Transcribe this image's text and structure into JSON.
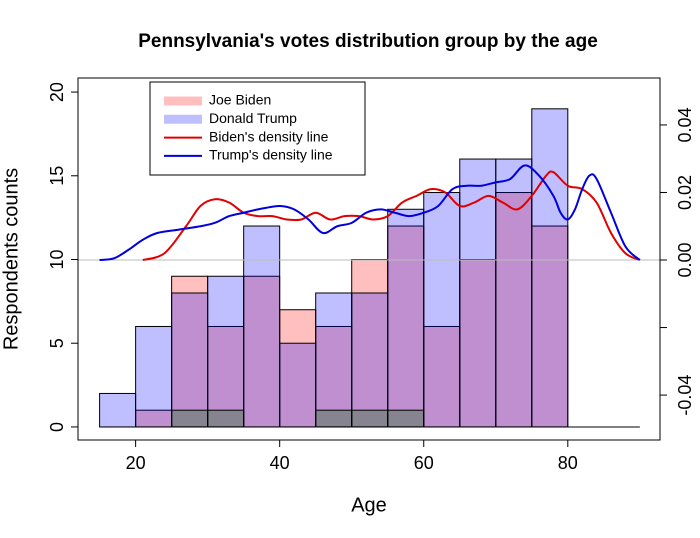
{
  "chart_data": {
    "type": "histogram",
    "title": "Pennsylvania's votes distribution group by the age",
    "xlabel": "Age",
    "ylabel": "Respondents counts",
    "bins": [
      15,
      20,
      25,
      30,
      35,
      40,
      45,
      50,
      55,
      60,
      65,
      70,
      75,
      80
    ],
    "series": [
      {
        "name": "Joe Biden",
        "color": "rgba(255,0,0,0.25)",
        "values": [
          0,
          1,
          9,
          6,
          9,
          7,
          6,
          10,
          12,
          6,
          10,
          14,
          12
        ]
      },
      {
        "name": "Donald Trump",
        "color": "rgba(0,0,255,0.25)",
        "values": [
          2,
          6,
          8,
          9,
          12,
          5,
          8,
          8,
          13,
          14,
          16,
          16,
          19
        ]
      },
      {
        "color": "rgba(0,110,0,0.3)",
        "values": [
          0,
          0,
          1,
          1,
          0,
          0,
          1,
          1,
          1,
          0,
          0,
          0,
          0
        ]
      }
    ],
    "lines": [
      {
        "name": "Biden's density line",
        "color": "#e00000",
        "axis": "y2",
        "x": [
          21,
          24,
          27,
          29,
          31,
          33,
          35,
          37,
          39,
          41,
          43,
          45,
          47,
          49,
          51,
          53,
          55,
          57,
          59,
          61,
          63,
          65,
          67,
          69,
          71,
          73,
          75,
          77,
          78,
          80,
          82,
          84,
          86,
          88,
          90
        ],
        "values": [
          0,
          0.002,
          0.01,
          0.016,
          0.018,
          0.017,
          0.014,
          0.013,
          0.013,
          0.012,
          0.012,
          0.014,
          0.012,
          0.013,
          0.013,
          0.012,
          0.013,
          0.017,
          0.019,
          0.021,
          0.02,
          0.016,
          0.017,
          0.019,
          0.017,
          0.015,
          0.019,
          0.025,
          0.026,
          0.022,
          0.021,
          0.017,
          0.008,
          0.002,
          0
        ]
      },
      {
        "name": "Trump's density line",
        "color": "#0000dd",
        "axis": "y2",
        "x": [
          15,
          17,
          19,
          21,
          23,
          26,
          29,
          31,
          33,
          35,
          37,
          40,
          42,
          44,
          46,
          48,
          50,
          52,
          54,
          56,
          58,
          60,
          62,
          64,
          66,
          68,
          70,
          72,
          74,
          76,
          78,
          79,
          80,
          81,
          82,
          83,
          84,
          86,
          88,
          90
        ],
        "values": [
          0,
          0.0005,
          0.003,
          0.006,
          0.008,
          0.009,
          0.01,
          0.011,
          0.013,
          0.014,
          0.015,
          0.016,
          0.015,
          0.012,
          0.008,
          0.01,
          0.011,
          0.014,
          0.015,
          0.014,
          0.013,
          0.014,
          0.016,
          0.021,
          0.022,
          0.022,
          0.023,
          0.024,
          0.028,
          0.025,
          0.019,
          0.014,
          0.012,
          0.015,
          0.021,
          0.025,
          0.024,
          0.014,
          0.004,
          0
        ]
      }
    ],
    "xlim": [
      12,
      92.8
    ],
    "xticks": [
      20,
      40,
      60,
      80
    ],
    "ylim": [
      -0.78,
      20.84
    ],
    "yticks": [
      0,
      5,
      10,
      15,
      20
    ],
    "y2lim": [
      -0.0533,
      0.0539
    ],
    "y2ticks": [
      {
        "value": -0.04,
        "label": "-0.04"
      },
      {
        "value": -0.02,
        "label": null
      },
      {
        "value": 0,
        "label": "0.00"
      },
      {
        "value": 0.02,
        "label": "0.02"
      },
      {
        "value": 0.04,
        "label": "0.04"
      }
    ],
    "legend": "topleft"
  }
}
